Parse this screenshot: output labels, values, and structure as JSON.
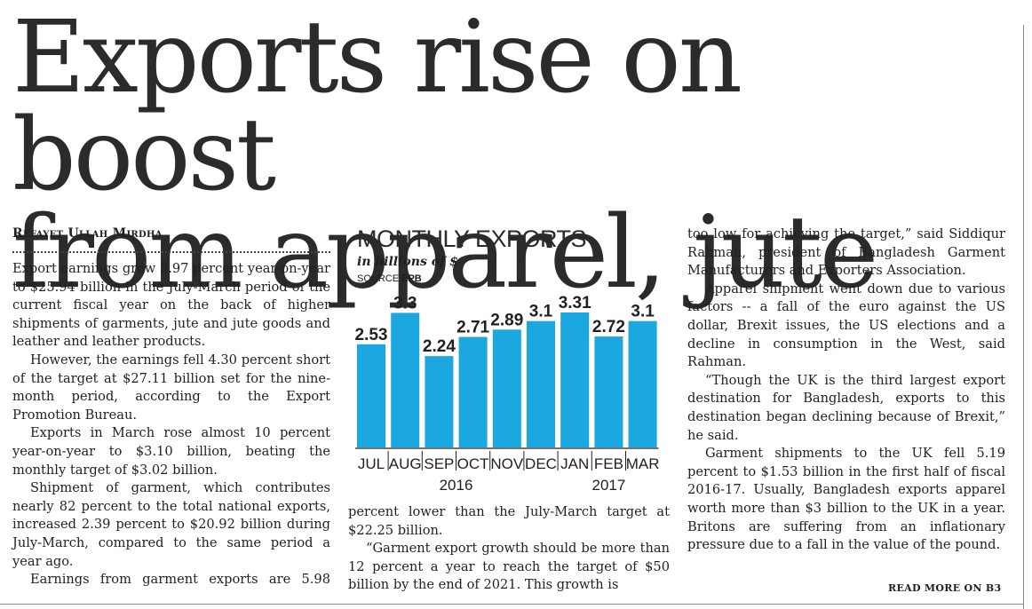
{
  "headline": {
    "line1": "Exports rise on boost",
    "line2": "from apparel, jute"
  },
  "byline": "Refayet Ullah Mirdha",
  "col1": [
    "Export earnings grew 3.97 percent year-on-year to $25.94 billion in the July-March period of the current fiscal year on the back of higher shipments of garments, jute and jute goods and leather and leather products.",
    "However, the earnings fell 4.30 percent short of the target at $27.11 billion set for the nine-month period, according to the Export Promotion Bureau.",
    "Exports in March rose almost 10 percent year-on-year to $3.10 billion, beating the monthly target of $3.02 billion.",
    "Shipment of garment, which contributes nearly 82 percent to the total national exports, increased 2.39 percent to $20.92 billion during July-March, compared to the same period a year ago.",
    "Earnings from garment exports are 5.98"
  ],
  "col2": [
    "percent lower than the July-March target at $22.25 billion.",
    "“Garment export growth should be more than 12 percent a year to reach the target of $50 billion by the end of 2021. This growth is"
  ],
  "col3": [
    "too low for achieving the target,” said Siddiqur Rahman, president of Bangladesh Garment Manufacturers and Exporters Association.",
    "Apparel shipment went down due to various factors -- a fall of the euro against the US dollar, Brexit issues, the US elections and a decline in consumption in the West, said Rahman.",
    "“Though the UK is the third largest export destination for Bangladesh, exports to this destination began declining because of Brexit,” he said.",
    "Garment shipments to the UK fell 5.19 percent to $1.53 billion in the first half of fiscal 2016-17. Usually, Bangladesh exports apparel worth more than $3 billion to the UK in a year. Britons are suffering from an inflationary pressure due to a fall in the value of the pound."
  ],
  "read_more": "READ MORE ON B3",
  "chart_data": {
    "type": "bar",
    "title": "MONTHLY EXPORTS",
    "subtitle": "in billions of $",
    "source_label": "SOURCE:",
    "source": "EPB",
    "categories": [
      "JUL",
      "AUG",
      "SEP",
      "OCT",
      "NOV",
      "DEC",
      "JAN",
      "FEB",
      "MAR"
    ],
    "values": [
      2.53,
      3.3,
      2.24,
      2.71,
      2.89,
      3.1,
      3.31,
      2.72,
      3.1
    ],
    "value_labels": [
      "2.53",
      "3.3",
      "2.24",
      "2.71",
      "2.89",
      "3.1",
      "3.31",
      "2.72",
      "3.1"
    ],
    "year_groups": [
      {
        "label": "2016",
        "from": 0,
        "to": 5
      },
      {
        "label": "2017",
        "from": 6,
        "to": 8
      }
    ],
    "bar_color": "#1ba8e0",
    "ylim": [
      0,
      3.31
    ]
  }
}
